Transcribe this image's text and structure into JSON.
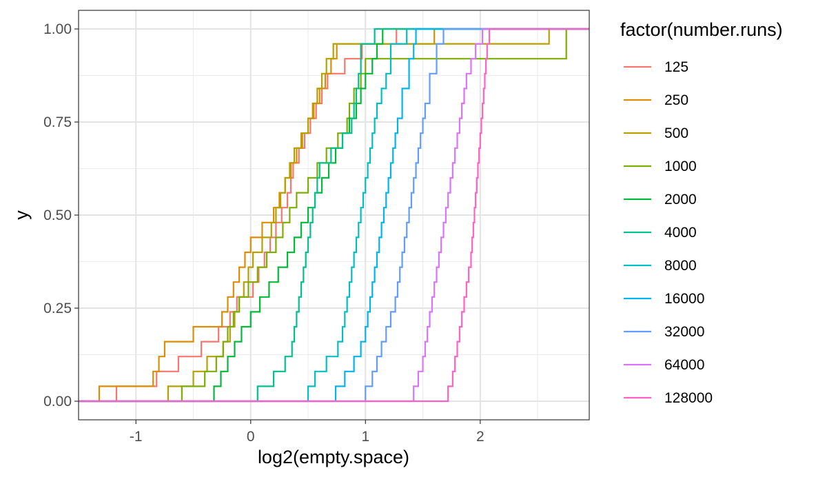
{
  "chart_data": {
    "type": "line",
    "subtype": "step-ecdf",
    "xlabel": "log2(empty.space)",
    "ylabel": "y",
    "xlim": [
      -1.5,
      2.95
    ],
    "ylim": [
      -0.05,
      1.05
    ],
    "x_ticks": [
      -1,
      0,
      1,
      2
    ],
    "x_tick_labels": [
      "-1",
      "0",
      "1",
      "2"
    ],
    "y_ticks": [
      0,
      0.25,
      0.5,
      0.75,
      1
    ],
    "y_tick_labels": [
      "0.00",
      "0.25",
      "0.50",
      "0.75",
      "1.00"
    ],
    "grid": true,
    "legend": {
      "title": "factor(number.runs)",
      "position": "right"
    },
    "series": [
      {
        "name": "125",
        "color": "#F8766D",
        "x": [
          -1.17,
          -0.82,
          -0.63,
          -0.43,
          -0.28,
          -0.18,
          -0.12,
          0.02,
          0.07,
          0.12,
          0.17,
          0.22,
          0.27,
          0.32,
          0.35,
          0.37,
          0.42,
          0.47,
          0.52,
          0.57,
          0.62,
          0.67,
          0.82,
          0.97,
          1.27,
          2.07,
          2.2
        ],
        "y": [
          0.04,
          0.08,
          0.12,
          0.16,
          0.2,
          0.24,
          0.28,
          0.32,
          0.36,
          0.4,
          0.44,
          0.48,
          0.52,
          0.56,
          0.6,
          0.64,
          0.68,
          0.72,
          0.76,
          0.8,
          0.84,
          0.88,
          0.92,
          0.96,
          1,
          1,
          1
        ]
      },
      {
        "name": "250",
        "color": "#DE8C00",
        "x": [
          -1.32,
          -0.85,
          -0.8,
          -0.75,
          -0.5,
          -0.25,
          -0.2,
          -0.15,
          -0.1,
          -0.05,
          0.0,
          0.1,
          0.2,
          0.25,
          0.3,
          0.35,
          0.4,
          0.45,
          0.5,
          0.55,
          0.6,
          0.65,
          0.7,
          0.75,
          1.6
        ],
        "y": [
          0.04,
          0.08,
          0.12,
          0.16,
          0.2,
          0.24,
          0.28,
          0.32,
          0.36,
          0.4,
          0.44,
          0.48,
          0.52,
          0.56,
          0.6,
          0.64,
          0.68,
          0.72,
          0.76,
          0.8,
          0.84,
          0.88,
          0.92,
          0.96,
          1
        ]
      },
      {
        "name": "500",
        "color": "#B79F00",
        "x": [
          -0.72,
          -0.5,
          -0.38,
          -0.24,
          -0.18,
          -0.14,
          -0.1,
          -0.06,
          -0.02,
          0.02,
          0.1,
          0.18,
          0.22,
          0.26,
          0.3,
          0.34,
          0.38,
          0.44,
          0.5,
          0.54,
          0.58,
          0.62,
          0.66,
          0.72,
          0.82,
          2.6,
          2.72
        ],
        "y": [
          0.04,
          0.08,
          0.12,
          0.16,
          0.2,
          0.24,
          0.28,
          0.32,
          0.36,
          0.4,
          0.44,
          0.48,
          0.52,
          0.56,
          0.6,
          0.64,
          0.68,
          0.72,
          0.76,
          0.8,
          0.84,
          0.88,
          0.92,
          0.96,
          0.96,
          1,
          1
        ]
      },
      {
        "name": "1000",
        "color": "#7CAE00",
        "x": [
          -0.6,
          -0.4,
          -0.3,
          -0.24,
          -0.2,
          -0.15,
          -0.1,
          -0.02,
          0.06,
          0.14,
          0.22,
          0.28,
          0.34,
          0.4,
          0.5,
          0.58,
          0.66,
          0.76,
          0.84,
          0.86,
          0.9,
          0.96,
          1.0,
          2.68,
          2.75
        ],
        "y": [
          0.04,
          0.08,
          0.12,
          0.16,
          0.2,
          0.24,
          0.28,
          0.32,
          0.36,
          0.4,
          0.44,
          0.48,
          0.52,
          0.56,
          0.6,
          0.64,
          0.68,
          0.72,
          0.76,
          0.8,
          0.84,
          0.88,
          0.92,
          0.92,
          1
        ]
      },
      {
        "name": "2000",
        "color": "#00BA38",
        "x": [
          -0.32,
          -0.26,
          -0.2,
          -0.14,
          -0.08,
          0.0,
          0.08,
          0.16,
          0.24,
          0.32,
          0.38,
          0.44,
          0.5,
          0.56,
          0.62,
          0.68,
          0.74,
          0.8,
          0.86,
          0.92,
          0.96,
          1.0,
          1.06,
          1.1,
          1.15
        ],
        "y": [
          0.04,
          0.08,
          0.12,
          0.16,
          0.2,
          0.24,
          0.28,
          0.32,
          0.36,
          0.4,
          0.44,
          0.48,
          0.52,
          0.56,
          0.6,
          0.64,
          0.68,
          0.72,
          0.76,
          0.8,
          0.84,
          0.88,
          0.92,
          0.96,
          1
        ]
      },
      {
        "name": "4000",
        "color": "#00C08B",
        "x": [
          0.06,
          0.2,
          0.3,
          0.36,
          0.38,
          0.4,
          0.42,
          0.44,
          0.46,
          0.48,
          0.5,
          0.52,
          0.54,
          0.56,
          0.58,
          0.6,
          0.7,
          0.8,
          0.88,
          0.9,
          0.92,
          0.94,
          0.96,
          1.08,
          1.34
        ],
        "y": [
          0.04,
          0.08,
          0.12,
          0.16,
          0.2,
          0.24,
          0.28,
          0.32,
          0.36,
          0.4,
          0.44,
          0.48,
          0.52,
          0.56,
          0.6,
          0.64,
          0.68,
          0.72,
          0.76,
          0.8,
          0.84,
          0.88,
          0.96,
          1,
          1
        ]
      },
      {
        "name": "8000",
        "color": "#00BFC4",
        "x": [
          0.5,
          0.56,
          0.66,
          0.76,
          0.8,
          0.82,
          0.84,
          0.86,
          0.88,
          0.9,
          0.92,
          0.94,
          0.96,
          0.98,
          1.0,
          1.02,
          1.04,
          1.06,
          1.08,
          1.1,
          1.14,
          1.18,
          1.22,
          1.36
        ],
        "y": [
          0.04,
          0.08,
          0.12,
          0.16,
          0.2,
          0.24,
          0.28,
          0.32,
          0.36,
          0.4,
          0.44,
          0.48,
          0.52,
          0.56,
          0.6,
          0.64,
          0.68,
          0.72,
          0.76,
          0.8,
          0.84,
          0.88,
          0.96,
          1
        ]
      },
      {
        "name": "16000",
        "color": "#00B4F0",
        "x": [
          0.74,
          0.82,
          0.9,
          0.96,
          1.0,
          1.02,
          1.04,
          1.06,
          1.08,
          1.1,
          1.12,
          1.14,
          1.16,
          1.18,
          1.2,
          1.22,
          1.24,
          1.26,
          1.28,
          1.32,
          1.38,
          1.42,
          1.44
        ],
        "y": [
          0.04,
          0.08,
          0.12,
          0.16,
          0.2,
          0.24,
          0.28,
          0.32,
          0.36,
          0.4,
          0.44,
          0.48,
          0.52,
          0.56,
          0.6,
          0.64,
          0.68,
          0.72,
          0.76,
          0.84,
          0.92,
          0.96,
          1
        ]
      },
      {
        "name": "32000",
        "color": "#619CFF",
        "x": [
          1.0,
          1.06,
          1.1,
          1.14,
          1.18,
          1.22,
          1.26,
          1.28,
          1.3,
          1.32,
          1.34,
          1.36,
          1.38,
          1.4,
          1.42,
          1.44,
          1.46,
          1.48,
          1.5,
          1.52,
          1.56,
          1.62,
          1.68
        ],
        "y": [
          0.04,
          0.08,
          0.12,
          0.16,
          0.2,
          0.24,
          0.28,
          0.32,
          0.36,
          0.4,
          0.44,
          0.48,
          0.52,
          0.56,
          0.6,
          0.64,
          0.68,
          0.72,
          0.76,
          0.8,
          0.88,
          0.96,
          1
        ]
      },
      {
        "name": "64000",
        "color": "#DB72FB",
        "x": [
          1.42,
          1.46,
          1.5,
          1.52,
          1.54,
          1.56,
          1.58,
          1.6,
          1.62,
          1.64,
          1.66,
          1.68,
          1.7,
          1.72,
          1.74,
          1.76,
          1.78,
          1.8,
          1.82,
          1.84,
          1.86,
          1.88,
          1.92,
          1.96,
          2.02
        ],
        "y": [
          0.04,
          0.08,
          0.12,
          0.16,
          0.2,
          0.24,
          0.28,
          0.32,
          0.36,
          0.4,
          0.44,
          0.48,
          0.52,
          0.56,
          0.6,
          0.64,
          0.68,
          0.72,
          0.76,
          0.8,
          0.84,
          0.88,
          0.92,
          0.96,
          1
        ]
      },
      {
        "name": "128000",
        "color": "#FF61C3",
        "x": [
          1.72,
          1.76,
          1.78,
          1.8,
          1.82,
          1.84,
          1.86,
          1.88,
          1.9,
          1.92,
          1.93,
          1.94,
          1.95,
          1.96,
          1.97,
          1.98,
          1.99,
          2.0,
          2.01,
          2.02,
          2.03,
          2.04,
          2.05,
          2.06,
          2.08,
          2.1
        ],
        "y": [
          0.04,
          0.08,
          0.12,
          0.16,
          0.2,
          0.24,
          0.28,
          0.32,
          0.36,
          0.4,
          0.44,
          0.48,
          0.52,
          0.56,
          0.6,
          0.64,
          0.68,
          0.72,
          0.76,
          0.8,
          0.84,
          0.88,
          0.92,
          0.96,
          1,
          1
        ]
      }
    ]
  }
}
